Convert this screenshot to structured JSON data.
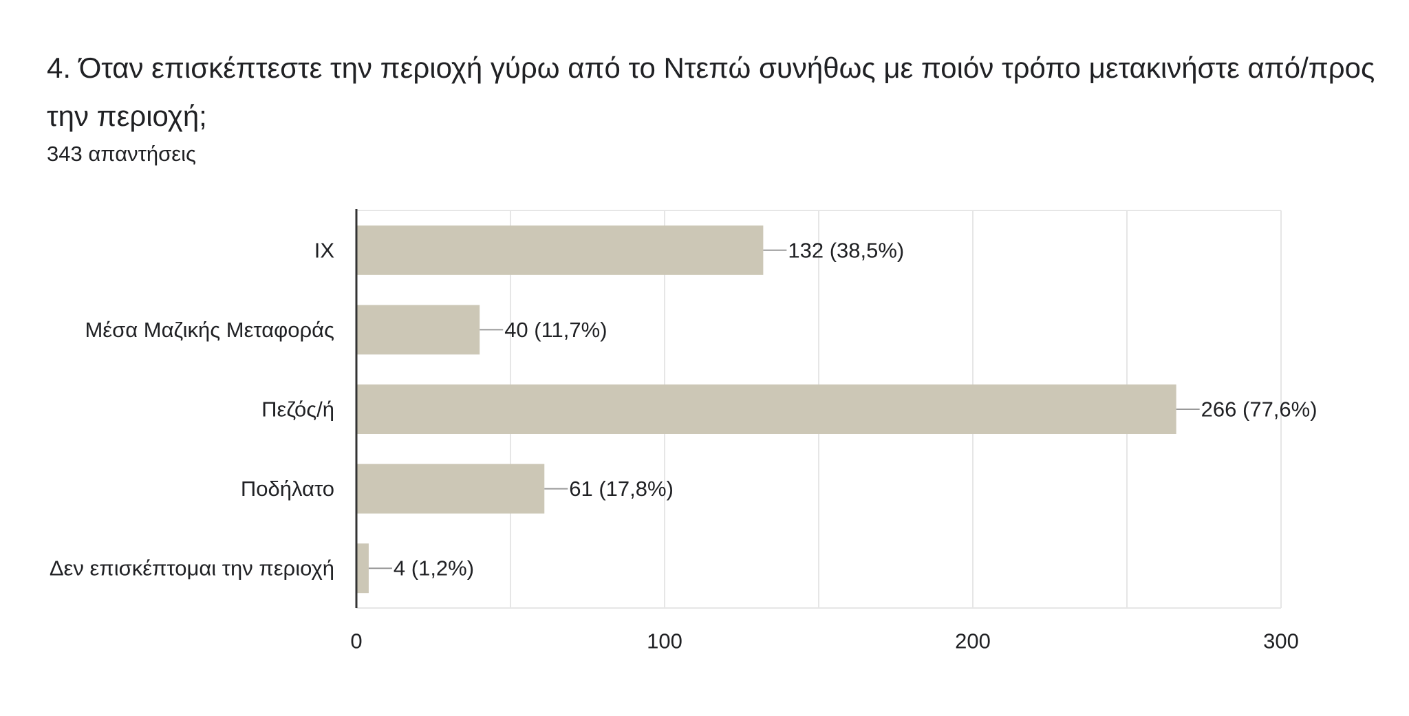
{
  "question": {
    "title": "4. Όταν επισκέπτεστε την περιοχή γύρω από το Ντεπώ συνήθως με ποιόν τρόπο μετακινήστε από/προς την περιοχή;",
    "responses": "343 απαντήσεις"
  },
  "colors": {
    "bar": "#ccc7b6",
    "grid": "#e6e6e6",
    "axis": "#333333",
    "leader": "#999999",
    "text": "#202124"
  },
  "chart_data": {
    "type": "bar",
    "orientation": "horizontal",
    "categories": [
      "ΙΧ",
      "Μέσα Μαζικής Μεταφοράς",
      "Πεζός/ή",
      "Ποδήλατο",
      "Δεν επισκέπτομαι την περιοχή"
    ],
    "values": [
      132,
      40,
      266,
      61,
      4
    ],
    "data_labels": [
      "132 (38,5%)",
      "40 (11,7%)",
      "266 (77,6%)",
      "61 (17,8%)",
      "4 (1,2%)"
    ],
    "xlim": [
      0,
      300
    ],
    "xticks": [
      0,
      100,
      200,
      300
    ],
    "xtick_labels": [
      "0",
      "100",
      "200",
      "300"
    ],
    "grid": true
  }
}
